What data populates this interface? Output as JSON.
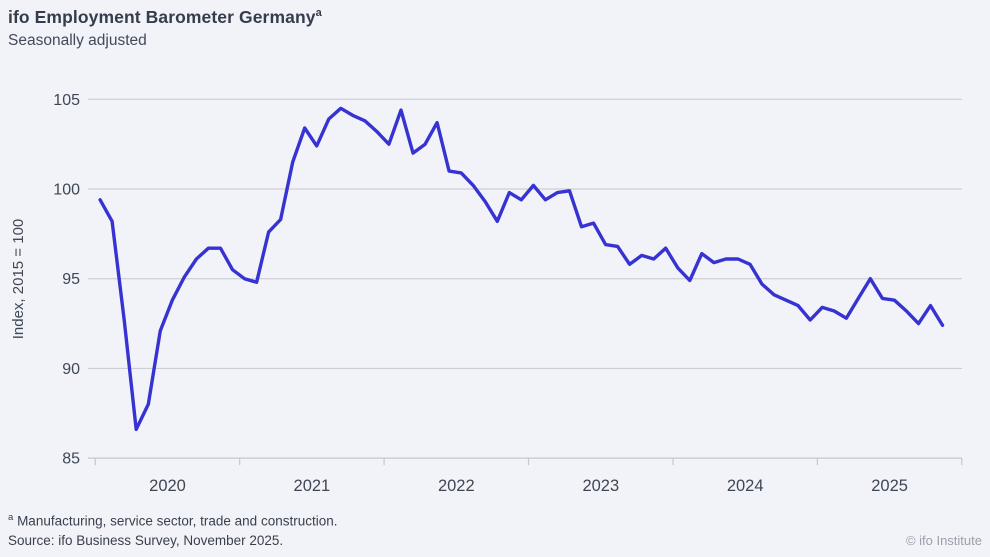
{
  "header": {
    "title": "ifo Employment Barometer Germany",
    "title_sup": "a",
    "subtitle": "Seasonally adjusted"
  },
  "chart_data": {
    "type": "line",
    "title": "ifo Employment Barometer Germany (a) — Seasonally adjusted",
    "ylabel": "Index, 2015 = 100",
    "ylim": [
      85,
      105
    ],
    "yticks": [
      105,
      100,
      95,
      90,
      85
    ],
    "grid": "horizontal",
    "legend": "none",
    "x_unit": "month",
    "x_start": "2020-01",
    "x_end": "2025-11",
    "xtick_year_labels": [
      "2020",
      "2021",
      "2022",
      "2023",
      "2024",
      "2025"
    ],
    "series": [
      {
        "name": "ifo Employment Barometer (seasonally adjusted)",
        "values": [
          99.4,
          98.2,
          92.7,
          86.6,
          88.0,
          92.1,
          93.8,
          95.1,
          96.1,
          96.7,
          96.7,
          95.5,
          95.0,
          94.8,
          97.6,
          98.3,
          101.5,
          103.4,
          102.4,
          103.9,
          104.5,
          104.1,
          103.8,
          103.2,
          102.5,
          104.4,
          102.0,
          102.5,
          103.7,
          101.0,
          100.9,
          100.2,
          99.3,
          98.2,
          99.8,
          99.4,
          100.2,
          99.4,
          99.8,
          99.9,
          97.9,
          98.1,
          96.9,
          96.8,
          95.8,
          96.3,
          96.1,
          96.7,
          95.6,
          94.9,
          96.4,
          95.9,
          96.1,
          96.1,
          95.8,
          94.7,
          94.1,
          93.8,
          93.5,
          92.7,
          93.4,
          93.2,
          92.8,
          93.9,
          95.0,
          93.9,
          93.8,
          93.2,
          92.5,
          93.5,
          92.4
        ]
      }
    ]
  },
  "footer": {
    "footnote_marker": "a",
    "footnote": "Manufacturing, service sector, trade and construction.",
    "source": "Source: ifo Business Survey, November 2025.",
    "copyright": "© ifo Institute"
  },
  "colors": {
    "line": "#3633d2",
    "background": "#f2f3f8",
    "grid": "#c6c7cd",
    "axis_text": "#3f4654",
    "title_text": "#353d4d",
    "copyright_text": "#9aa0ac"
  }
}
